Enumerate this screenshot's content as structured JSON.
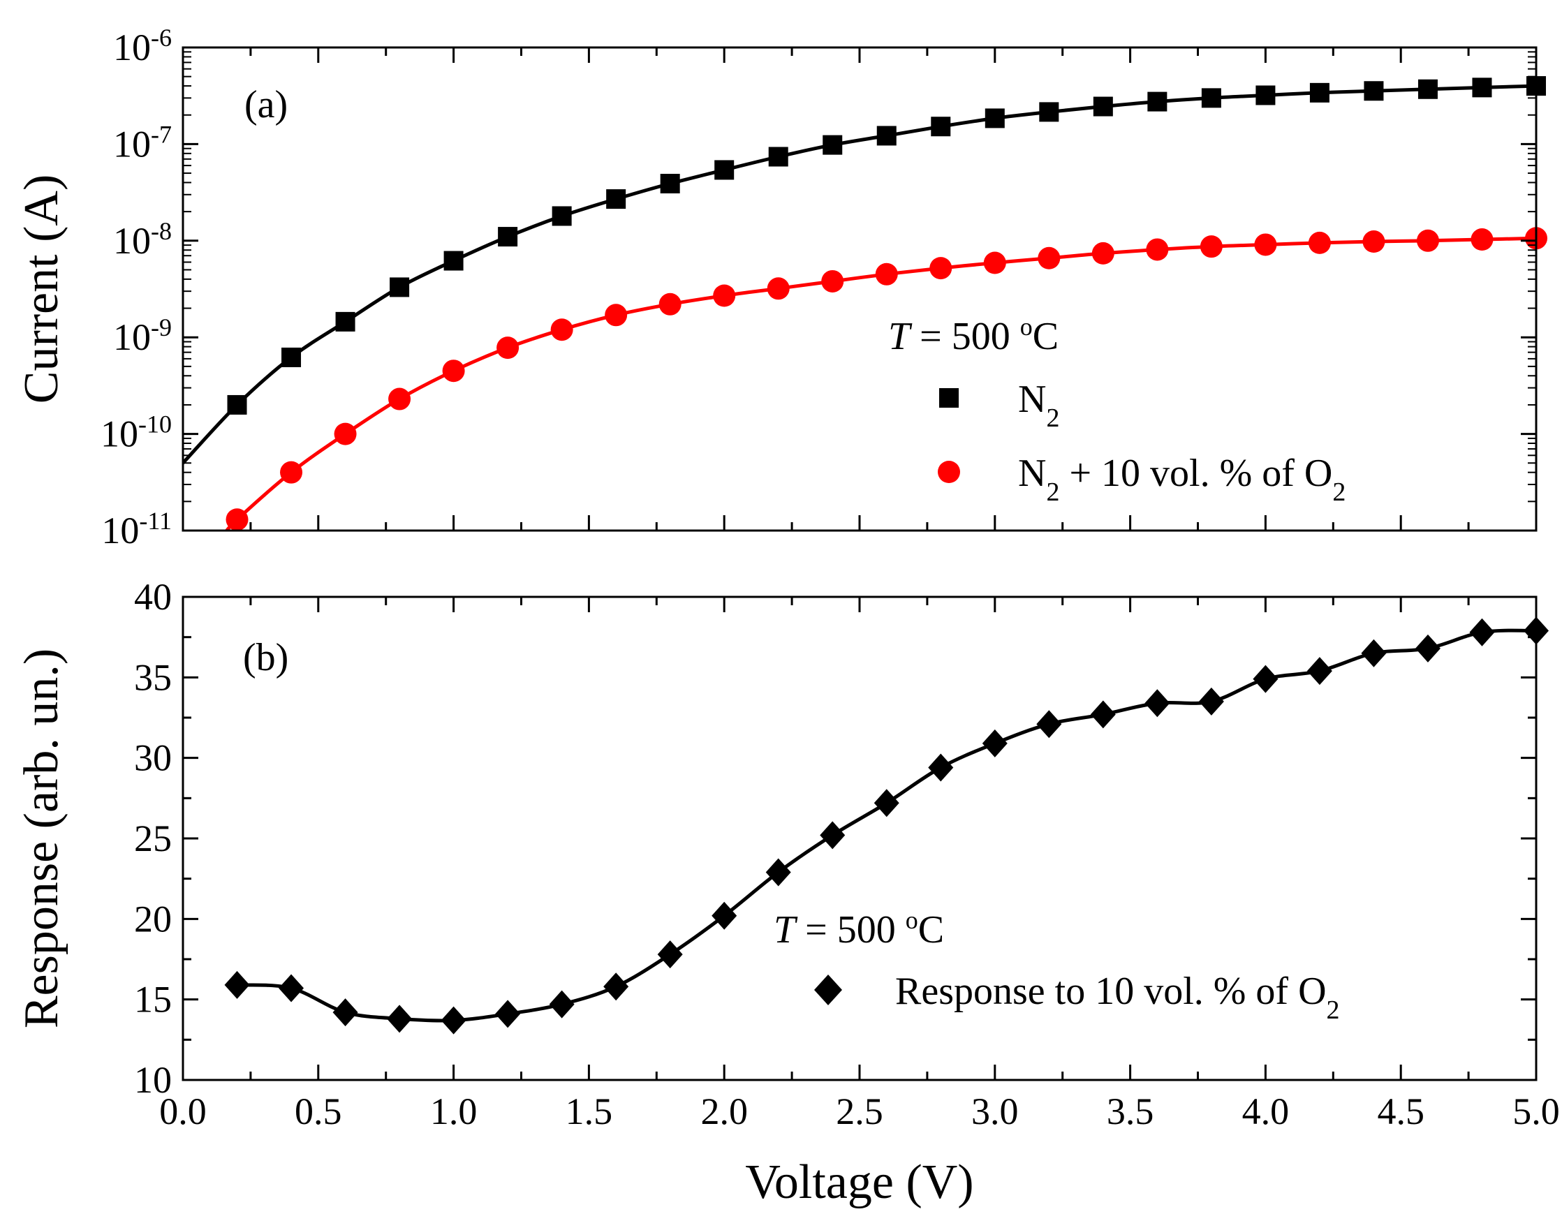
{
  "chart_data": [
    {
      "type": "scatter",
      "panel_label": "(a)",
      "xlabel": "",
      "ylabel": "Current (A)",
      "xlim": [
        0.0,
        5.0
      ],
      "ylim": [
        1e-11,
        1e-06
      ],
      "yscale": "log",
      "yticks": [
        {
          "base": "10",
          "exp": "-11",
          "value": 1e-11
        },
        {
          "base": "10",
          "exp": "-10",
          "value": 1e-10
        },
        {
          "base": "10",
          "exp": "-9",
          "value": 1e-09
        },
        {
          "base": "10",
          "exp": "-8",
          "value": 1e-08
        },
        {
          "base": "10",
          "exp": "-7",
          "value": 1e-07
        },
        {
          "base": "10",
          "exp": "-6",
          "value": 1e-06
        }
      ],
      "annotation": {
        "italic": "T",
        "rest": " = 500 ",
        "sup": "o",
        "unit": "C"
      },
      "legend_position": "center-right",
      "grid": false,
      "series": [
        {
          "name": "N2",
          "name_parts": {
            "a": "N",
            "a_sub": "2"
          },
          "marker": "square",
          "color": "#000000",
          "x": [
            0.2,
            0.4,
            0.6,
            0.8,
            1.0,
            1.2,
            1.4,
            1.6,
            1.8,
            2.0,
            2.2,
            2.4,
            2.6,
            2.8,
            3.0,
            3.2,
            3.4,
            3.6,
            3.8,
            4.0,
            4.2,
            4.4,
            4.6,
            4.8,
            5.0
          ],
          "y": [
            2e-10,
            6.2e-10,
            1.45e-09,
            3.3e-09,
            6.2e-09,
            1.1e-08,
            1.8e-08,
            2.7e-08,
            3.9e-08,
            5.4e-08,
            7.4e-08,
            9.8e-08,
            1.22e-07,
            1.52e-07,
            1.85e-07,
            2.15e-07,
            2.45e-07,
            2.75e-07,
            3e-07,
            3.2e-07,
            3.4e-07,
            3.55e-07,
            3.7e-07,
            3.85e-07,
            4e-07
          ],
          "fit_start": {
            "x": 0.0,
            "y": 5e-11
          }
        },
        {
          "name": "N2 + 10 vol. % of O2",
          "name_parts": {
            "a": "N",
            "a_sub": "2",
            "b": " + 10 vol. % of O",
            "b_sub": "2"
          },
          "marker": "circle",
          "color": "#ff0000",
          "x": [
            0.2,
            0.4,
            0.6,
            0.8,
            1.0,
            1.2,
            1.4,
            1.6,
            1.8,
            2.0,
            2.2,
            2.4,
            2.6,
            2.8,
            3.0,
            3.2,
            3.4,
            3.6,
            3.8,
            4.0,
            4.2,
            4.4,
            4.6,
            4.8,
            5.0
          ],
          "y": [
            1.3e-11,
            4e-11,
            1e-10,
            2.3e-10,
            4.5e-10,
            7.8e-10,
            1.2e-09,
            1.7e-09,
            2.2e-09,
            2.7e-09,
            3.2e-09,
            3.8e-09,
            4.5e-09,
            5.2e-09,
            5.9e-09,
            6.6e-09,
            7.4e-09,
            8.1e-09,
            8.7e-09,
            9.1e-09,
            9.5e-09,
            9.8e-09,
            1e-08,
            1.03e-08,
            1.06e-08
          ],
          "fit_start": {
            "x": 0.15,
            "y": 9e-12
          }
        }
      ]
    },
    {
      "type": "scatter",
      "panel_label": "(b)",
      "xlabel": "Voltage (V)",
      "ylabel": "Response (arb. un.)",
      "xlim": [
        0.0,
        5.0
      ],
      "ylim": [
        10,
        40
      ],
      "xticks": [
        "0.0",
        "0.5",
        "1.0",
        "1.5",
        "2.0",
        "2.5",
        "3.0",
        "3.5",
        "4.0",
        "4.5",
        "5.0"
      ],
      "yticks": [
        "10",
        "15",
        "20",
        "25",
        "30",
        "35",
        "40"
      ],
      "annotation": {
        "italic": "T",
        "rest": " = 500 ",
        "sup": "o",
        "unit": "C"
      },
      "legend_position": "lower-right",
      "grid": false,
      "series": [
        {
          "name": "Response to 10 vol. % of O2",
          "name_parts": {
            "a": "Response to 10 vol. % of O",
            "a_sub": "2"
          },
          "marker": "diamond",
          "color": "#000000",
          "x": [
            0.2,
            0.4,
            0.6,
            0.8,
            1.0,
            1.2,
            1.4,
            1.6,
            1.8,
            2.0,
            2.2,
            2.4,
            2.6,
            2.8,
            3.0,
            3.2,
            3.4,
            3.6,
            3.8,
            4.0,
            4.2,
            4.4,
            4.6,
            4.8,
            5.0
          ],
          "y": [
            15.9,
            15.7,
            14.2,
            13.8,
            13.7,
            14.1,
            14.7,
            15.8,
            17.8,
            20.2,
            22.9,
            25.2,
            27.2,
            29.4,
            30.9,
            32.1,
            32.7,
            33.4,
            33.5,
            34.9,
            35.4,
            36.5,
            36.8,
            37.8,
            37.9
          ]
        }
      ]
    }
  ]
}
